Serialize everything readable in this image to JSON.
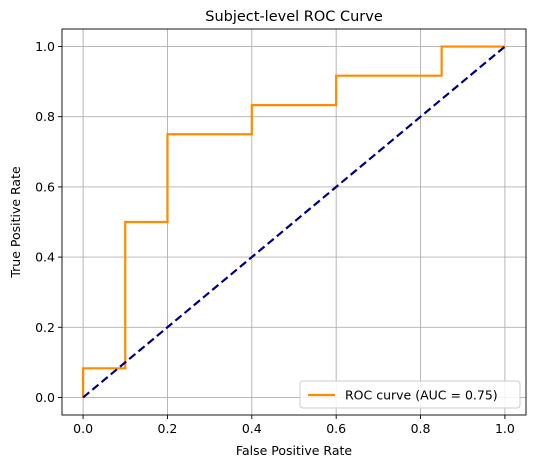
{
  "chart_data": {
    "type": "line",
    "title": "Subject-level ROC Curve",
    "xlabel": "False Positive Rate",
    "ylabel": "True Positive Rate",
    "xlim": [
      -0.05,
      1.05
    ],
    "ylim": [
      -0.05,
      1.05
    ],
    "xticks": [
      0.0,
      0.2,
      0.4,
      0.6,
      0.8,
      1.0
    ],
    "xtick_labels": [
      "0.0",
      "0.2",
      "0.4",
      "0.6",
      "0.8",
      "1.0"
    ],
    "yticks": [
      0.0,
      0.2,
      0.4,
      0.6,
      0.8,
      1.0
    ],
    "ytick_labels": [
      "0.0",
      "0.2",
      "0.4",
      "0.6",
      "0.8",
      "1.0"
    ],
    "grid": true,
    "legend_position": "lower-right",
    "series": [
      {
        "name": "ROC curve (AUC = 0.75)",
        "color": "#ff8c00",
        "style": "solid",
        "x": [
          0.0,
          0.0,
          0.1,
          0.1,
          0.2,
          0.2,
          0.4,
          0.4,
          0.6,
          0.6,
          0.85,
          0.85,
          1.0
        ],
        "y": [
          0.0,
          0.083,
          0.083,
          0.5,
          0.5,
          0.75,
          0.75,
          0.833,
          0.833,
          0.917,
          0.917,
          1.0,
          1.0
        ]
      },
      {
        "color": "#000080",
        "style": "dashed",
        "x": [
          0.0,
          1.0
        ],
        "y": [
          0.0,
          1.0
        ]
      }
    ]
  }
}
